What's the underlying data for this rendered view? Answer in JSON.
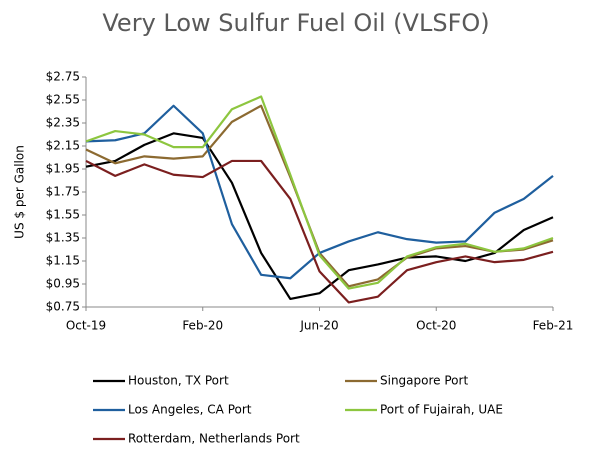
{
  "chart_data": {
    "type": "line",
    "title": "Very Low Sulfur Fuel Oil (VLSFO)",
    "y_label": "US $ per Gallon",
    "categories": [
      "Oct-19",
      null,
      null,
      null,
      "Feb-20",
      null,
      null,
      null,
      "Jun-20",
      null,
      null,
      null,
      "Oct-20",
      null,
      null,
      null,
      "Feb-21"
    ],
    "series": [
      {
        "name": "Houston, TX Port",
        "color": "#000000",
        "values": [
          1.97,
          2.02,
          2.16,
          2.26,
          2.22,
          1.83,
          1.22,
          0.82,
          0.87,
          1.07,
          1.12,
          1.18,
          1.19,
          1.15,
          1.22,
          1.42,
          1.53
        ]
      },
      {
        "name": "Singapore Port",
        "color": "#8c6a31",
        "values": [
          2.12,
          2.0,
          2.06,
          2.04,
          2.06,
          2.36,
          2.5,
          1.88,
          1.22,
          0.93,
          0.99,
          1.18,
          1.26,
          1.28,
          1.23,
          1.25,
          1.33
        ]
      },
      {
        "name": "Los Angeles, CA Port",
        "color": "#1f5f9e",
        "values": [
          2.19,
          2.2,
          2.26,
          2.5,
          2.26,
          1.47,
          1.03,
          1.0,
          1.22,
          1.32,
          1.4,
          1.34,
          1.31,
          1.32,
          1.57,
          1.69,
          1.89
        ]
      },
      {
        "name": "Port of Fujairah, UAE",
        "color": "#8dc63f",
        "values": [
          2.19,
          2.28,
          2.25,
          2.14,
          2.14,
          2.47,
          2.58,
          1.9,
          1.2,
          0.91,
          0.96,
          1.19,
          1.27,
          1.3,
          1.23,
          1.26,
          1.35
        ]
      },
      {
        "name": "Rotterdam, Netherlands Port",
        "color": "#7b1f1f",
        "values": [
          2.02,
          1.89,
          1.99,
          1.9,
          1.88,
          2.02,
          2.02,
          1.69,
          1.06,
          0.79,
          0.84,
          1.07,
          1.14,
          1.19,
          1.14,
          1.16,
          1.23
        ]
      }
    ],
    "ylim": [
      0.75,
      2.75
    ],
    "yticks": [
      {
        "value": 0.75,
        "label": "$0.75"
      },
      {
        "value": 0.95,
        "label": "$0.95"
      },
      {
        "value": 1.15,
        "label": "$1.15"
      },
      {
        "value": 1.35,
        "label": "$1.35"
      },
      {
        "value": 1.55,
        "label": "$1.55"
      },
      {
        "value": 1.75,
        "label": "$1.75"
      },
      {
        "value": 1.95,
        "label": "$1.95"
      },
      {
        "value": 2.15,
        "label": "$2.15"
      },
      {
        "value": 2.35,
        "label": "$2.35"
      },
      {
        "value": 2.55,
        "label": "$2.55"
      },
      {
        "value": 2.75,
        "label": "$2.75"
      }
    ],
    "grid": false,
    "legend": "bottom"
  }
}
